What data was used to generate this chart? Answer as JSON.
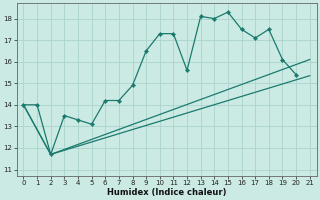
{
  "xlabel": "Humidex (Indice chaleur)",
  "xlim": [
    -0.5,
    21.5
  ],
  "ylim": [
    10.7,
    18.7
  ],
  "yticks": [
    11,
    12,
    13,
    14,
    15,
    16,
    17,
    18
  ],
  "xticks": [
    0,
    1,
    2,
    3,
    4,
    5,
    6,
    7,
    8,
    9,
    10,
    11,
    12,
    13,
    14,
    15,
    16,
    17,
    18,
    19,
    20,
    21
  ],
  "line_color": "#1a7a6e",
  "bg_color": "#cceae4",
  "grid_color": "#aad4cc",
  "line1_x": [
    0,
    1,
    2,
    3,
    4,
    5,
    6,
    7,
    8,
    9,
    10,
    11,
    12,
    13,
    14,
    15,
    16,
    17,
    18,
    19,
    20
  ],
  "line1_y": [
    14.0,
    14.0,
    11.7,
    13.5,
    13.3,
    13.1,
    14.2,
    14.2,
    14.9,
    16.5,
    17.3,
    17.3,
    15.6,
    18.1,
    18.0,
    18.3,
    17.5,
    17.1,
    17.5,
    16.1,
    15.4
  ],
  "line2_x": [
    0,
    2,
    21
  ],
  "line2_y": [
    14.0,
    11.7,
    15.35
  ],
  "line3_x": [
    0,
    2,
    21
  ],
  "line3_y": [
    14.0,
    11.7,
    16.1
  ]
}
